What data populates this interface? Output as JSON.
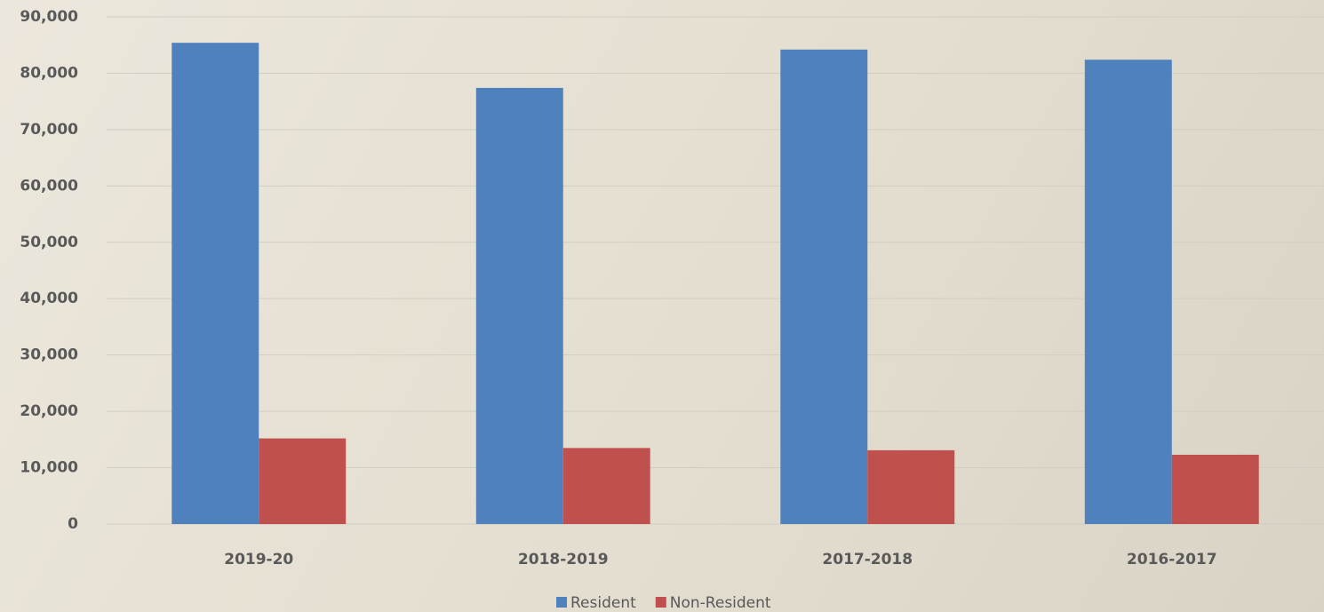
{
  "chart_data": {
    "type": "bar",
    "categories": [
      "2019-20",
      "2018-2019",
      "2017-2018",
      "2016-2017"
    ],
    "series": [
      {
        "name": "Resident",
        "color": "#4f81bd",
        "values": [
          85400,
          77400,
          84200,
          82400
        ]
      },
      {
        "name": "Non-Resident",
        "color": "#c0504d",
        "values": [
          15200,
          13500,
          13100,
          12300
        ]
      }
    ],
    "ylim": [
      0,
      90000
    ],
    "yticks": [
      0,
      {
        "value": 10000,
        "label": "10,000"
      },
      {
        "value": 20000,
        "label": "20,000"
      },
      {
        "value": 30000,
        "label": "30,000"
      },
      {
        "value": 40000,
        "label": "40,000"
      },
      {
        "value": 50000,
        "label": "50,000"
      },
      {
        "value": 60000,
        "label": "60,000"
      },
      {
        "value": 70000,
        "label": "70,000"
      },
      {
        "value": 80000,
        "label": "80,000"
      },
      {
        "value": 90000,
        "label": "90,000"
      }
    ],
    "grid": true,
    "legend": "bottom"
  }
}
